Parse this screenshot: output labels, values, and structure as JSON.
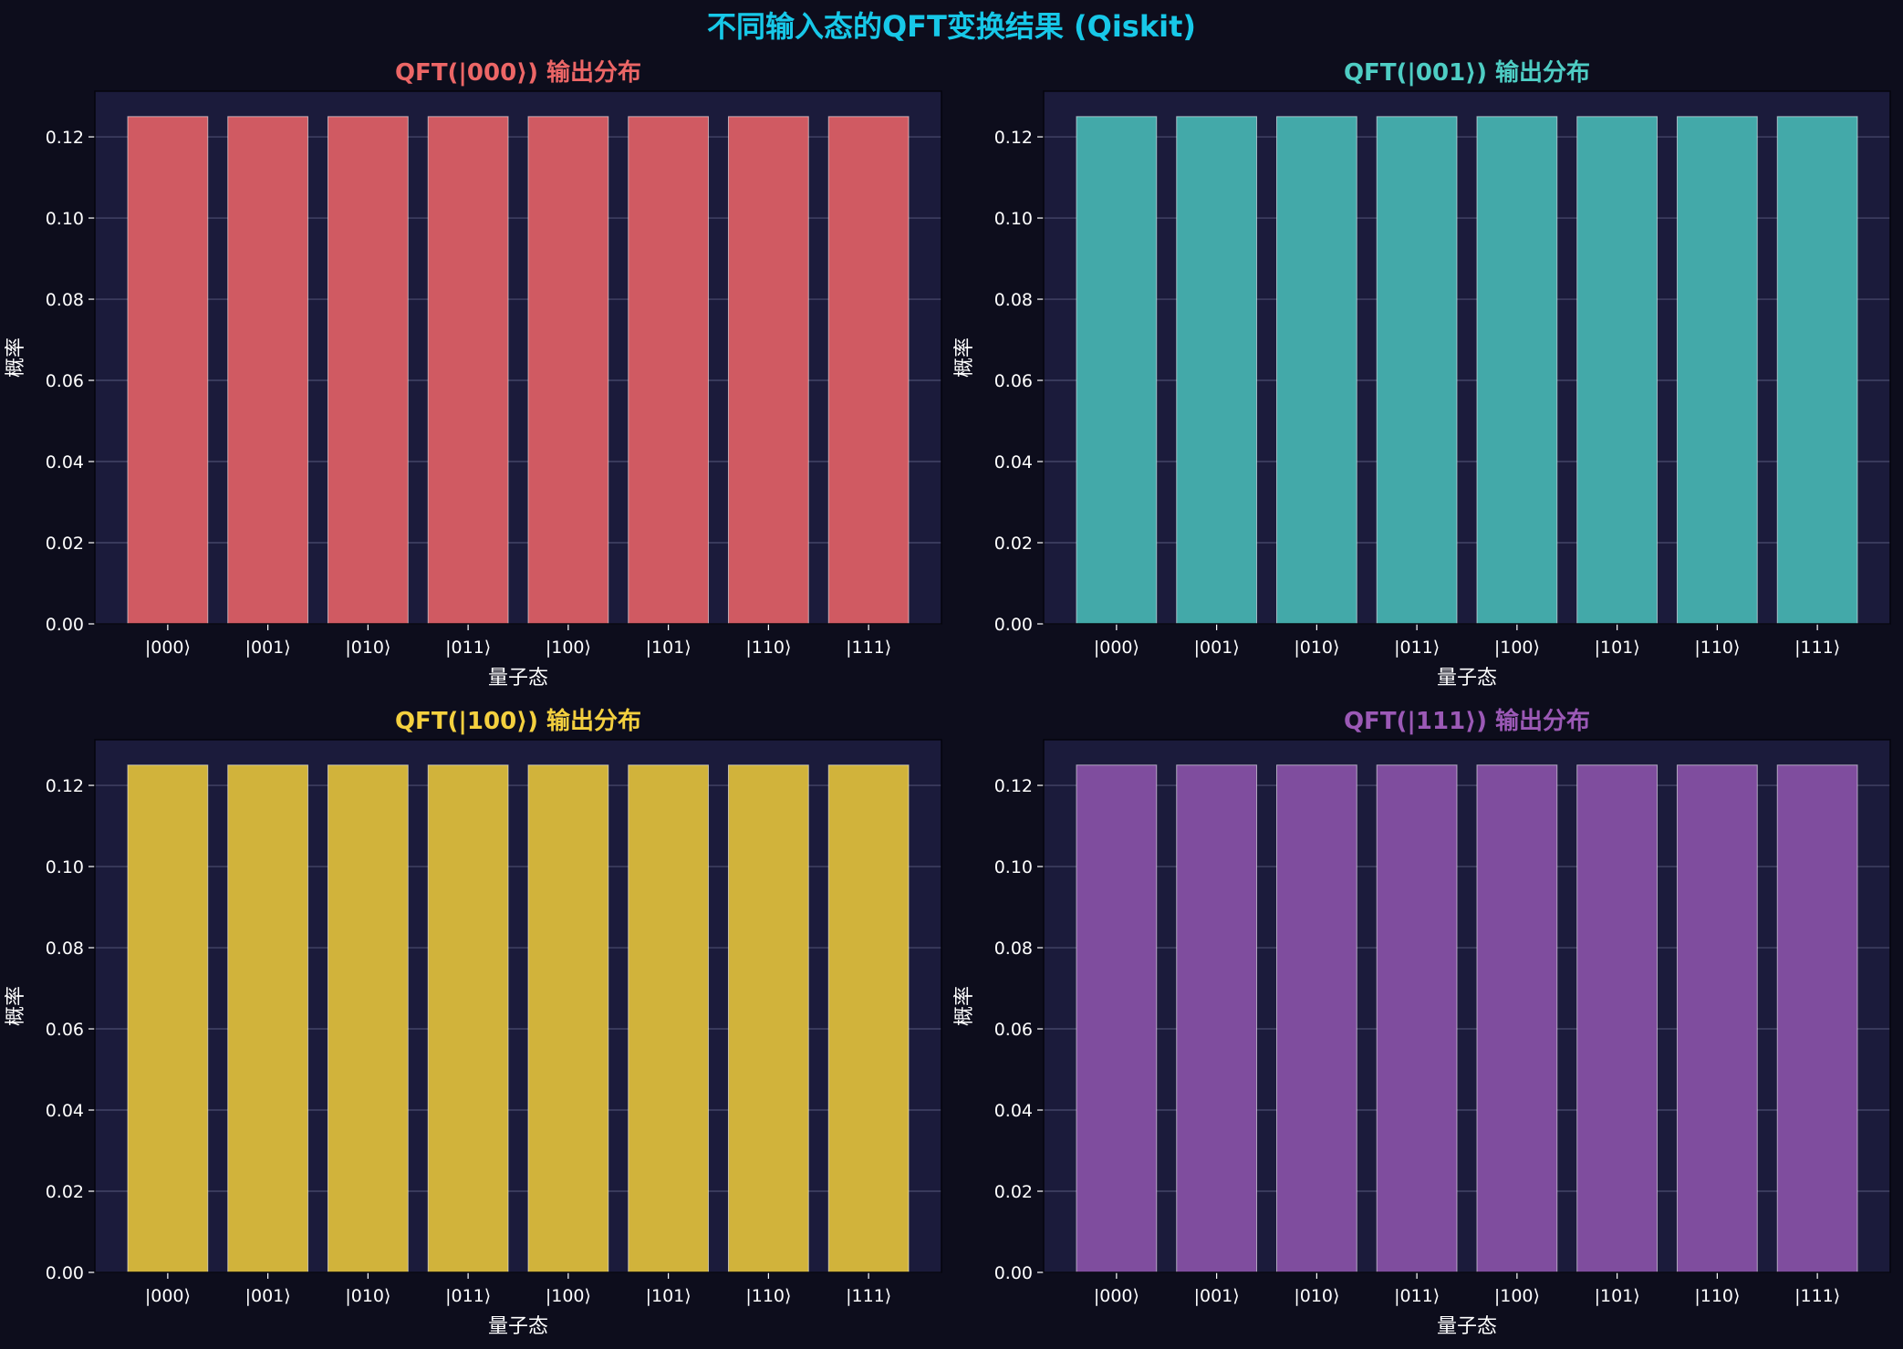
{
  "title": "不同输入态的QFT变换结果 (Qiskit)",
  "title_color": "#17c8e8",
  "plot_bg": "#1b1b3b",
  "grid_color": "#8a8fb0",
  "chart_data": [
    {
      "type": "bar",
      "title": "QFT(|000⟩) 输出分布",
      "title_color": "#ec6666",
      "bar_color": "#d05a62",
      "categories": [
        "|000⟩",
        "|001⟩",
        "|010⟩",
        "|011⟩",
        "|100⟩",
        "|101⟩",
        "|110⟩",
        "|111⟩"
      ],
      "values": [
        0.125,
        0.125,
        0.125,
        0.125,
        0.125,
        0.125,
        0.125,
        0.125
      ],
      "xlabel": "量子态",
      "ylabel": "概率",
      "ylim": [
        0,
        0.13125
      ],
      "yticks": [
        "0.00",
        "0.02",
        "0.04",
        "0.06",
        "0.08",
        "0.10",
        "0.12"
      ],
      "grid": true
    },
    {
      "type": "bar",
      "title": "QFT(|001⟩) 输出分布",
      "title_color": "#4ecdc4",
      "bar_color": "#43a9a9",
      "categories": [
        "|000⟩",
        "|001⟩",
        "|010⟩",
        "|011⟩",
        "|100⟩",
        "|101⟩",
        "|110⟩",
        "|111⟩"
      ],
      "values": [
        0.125,
        0.125,
        0.125,
        0.125,
        0.125,
        0.125,
        0.125,
        0.125
      ],
      "xlabel": "量子态",
      "ylabel": "概率",
      "ylim": [
        0,
        0.13125
      ],
      "yticks": [
        "0.00",
        "0.02",
        "0.04",
        "0.06",
        "0.08",
        "0.10",
        "0.12"
      ],
      "grid": true
    },
    {
      "type": "bar",
      "title": "QFT(|100⟩) 输出分布",
      "title_color": "#f4d03f",
      "bar_color": "#d1b33b",
      "categories": [
        "|000⟩",
        "|001⟩",
        "|010⟩",
        "|011⟩",
        "|100⟩",
        "|101⟩",
        "|110⟩",
        "|111⟩"
      ],
      "values": [
        0.125,
        0.125,
        0.125,
        0.125,
        0.125,
        0.125,
        0.125,
        0.125
      ],
      "xlabel": "量子态",
      "ylabel": "概率",
      "ylim": [
        0,
        0.13125
      ],
      "yticks": [
        "0.00",
        "0.02",
        "0.04",
        "0.06",
        "0.08",
        "0.10",
        "0.12"
      ],
      "grid": true
    },
    {
      "type": "bar",
      "title": "QFT(|111⟩) 输出分布",
      "title_color": "#9b59b6",
      "bar_color": "#7f4d9e",
      "categories": [
        "|000⟩",
        "|001⟩",
        "|010⟩",
        "|011⟩",
        "|100⟩",
        "|101⟩",
        "|110⟩",
        "|111⟩"
      ],
      "values": [
        0.125,
        0.125,
        0.125,
        0.125,
        0.125,
        0.125,
        0.125,
        0.125
      ],
      "xlabel": "量子态",
      "ylabel": "概率",
      "ylim": [
        0,
        0.13125
      ],
      "yticks": [
        "0.00",
        "0.02",
        "0.04",
        "0.06",
        "0.08",
        "0.10",
        "0.12"
      ],
      "grid": true
    }
  ]
}
